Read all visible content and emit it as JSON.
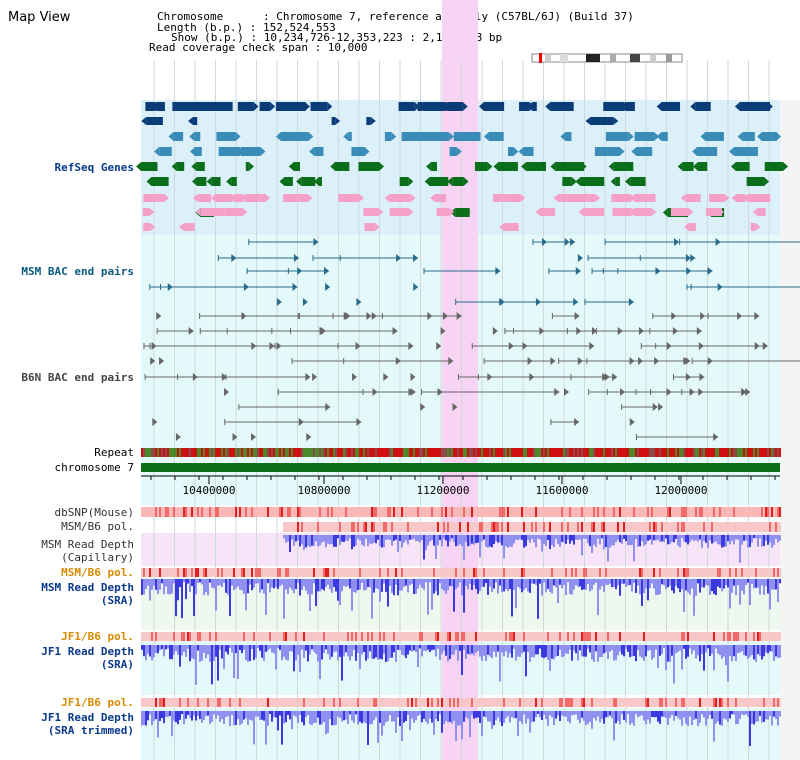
{
  "title": "Map View",
  "info": {
    "chromosome": "Chromosome      : Chromosome 7, reference assembly (C57BL/6J) (Build 37)",
    "length": "Length (b.p.) : 152,524,553",
    "show": "Show (b.p.) : 10,234,726-12,353,223 : 2,118,498 bp",
    "span": "Read coverage check span : 10,000"
  },
  "tracks": {
    "refseq": "RefSeq Genes",
    "msm_bac": "MSM BAC end pairs",
    "b6n_bac": "B6N BAC end pairs",
    "repeat": "Repeat",
    "chromosome": "chromosome 7",
    "dbsnp": "dbSNP(Mouse)",
    "msm_pol1": "MSM/B6 pol.",
    "msm_cap": "MSM Read Depth\n(Capillary)",
    "msm_pol2": "MSM/B6 pol.",
    "msm_sra": "MSM Read Depth\n(SRA)",
    "jf1_pol1": "JF1/B6 pol.",
    "jf1_sra": "JF1 Read Depth\n(SRA)",
    "jf1_pol2": "JF1/B6 pol.",
    "jf1_trim": "JF1 Read Depth\n(SRA trimmed)"
  },
  "axis": {
    "ticks": [
      "10400000",
      "10800000",
      "11200000",
      "11600000",
      "12000000"
    ]
  },
  "colors": {
    "refseq_bg": "#dcf0fa",
    "cyan_bg": "#e4fafa",
    "highlight": "#f8d4f4",
    "label_blue": "#0a3a8c",
    "label_orange": "#d88a00",
    "gene_dark": "#0a3c78",
    "gene_mid": "#3a8cb8",
    "gene_green": "#0a6e1a",
    "bac_msm": "#2a6a8a",
    "bac_b6n": "#666666",
    "depth_blue": "#3a3ae0",
    "depth_light": "#9090f0"
  }
}
